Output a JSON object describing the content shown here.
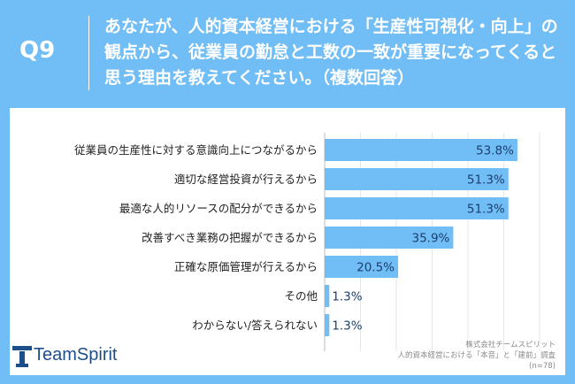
{
  "question": {
    "number": "Q9",
    "text": "あなたが、人的資本経営における「生産性可視化・向上」の観点から、従業員の勤怠と工数の一致が重要になってくると思う理由を教えてください。（複数回答）"
  },
  "chart_data": {
    "type": "bar",
    "orientation": "horizontal",
    "categories": [
      "従業員の生産性に対する意識向上につながるから",
      "適切な経営投資が行えるから",
      "最適な人的リソースの配分ができるから",
      "改善すべき業務の把握ができるから",
      "正確な原価管理が行えるから",
      "その他",
      "わからない/答えられない"
    ],
    "values": [
      53.8,
      51.3,
      51.3,
      35.9,
      20.5,
      1.3,
      1.3
    ],
    "value_labels": [
      "53.8%",
      "51.3%",
      "51.3%",
      "35.9%",
      "20.5%",
      "1.3%",
      "1.3%"
    ],
    "xlim": [
      0,
      60
    ],
    "unit": "%",
    "grid": true,
    "bar_color": "#71bdf6"
  },
  "branding": {
    "logo_text": "TeamSpirit",
    "credit_company": "株式会社チームスピリット",
    "credit_survey": "人的資本経営における「本音」と「建前」調査",
    "sample_size": "(n=78)"
  }
}
